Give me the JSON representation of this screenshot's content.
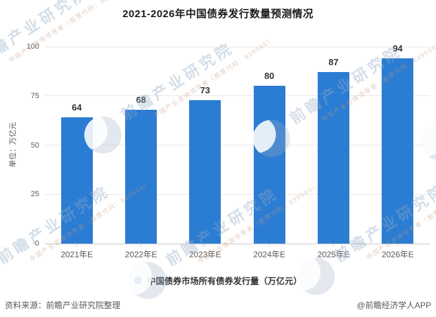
{
  "title": "2021-2026年中国债券发行数量预测情况",
  "y_axis": {
    "unit_label": "单位：万亿元"
  },
  "chart_data": {
    "type": "bar",
    "title": "2021-2026年中国债券发行数量预测情况",
    "categories": [
      "2021年E",
      "2022年E",
      "2023年E",
      "2024年E",
      "2025年E",
      "2026年E"
    ],
    "values": [
      64,
      68,
      73,
      80,
      87,
      94
    ],
    "series_name": "中国债券市场所有债券发行量（万亿元）",
    "xlabel": "",
    "ylabel": "单位：万亿元",
    "ylim": [
      0,
      100
    ],
    "yticks": [
      0,
      25,
      50,
      75,
      100
    ],
    "grid": true,
    "legend_position": "bottom",
    "bar_color": "#2b7cd3",
    "value_label_color": "#333333"
  },
  "legend": {
    "label": "中国债券市场所有债券发行量（万亿元）",
    "dot_color": "#2b7cd3"
  },
  "footer": {
    "source": "资料来源：前瞻产业研究院整理",
    "credit": "@前瞻经济学人APP"
  },
  "watermark": {
    "main": "前瞻产业研究院",
    "sub": "中国产业咨询领导者（股票代码：839599）"
  },
  "colors": {
    "bar": "#2b7cd3",
    "axis_text": "#595959",
    "gridline": "#e8e8e8",
    "axis_line": "#c9c9c9",
    "title_text": "#1a1a1a"
  }
}
